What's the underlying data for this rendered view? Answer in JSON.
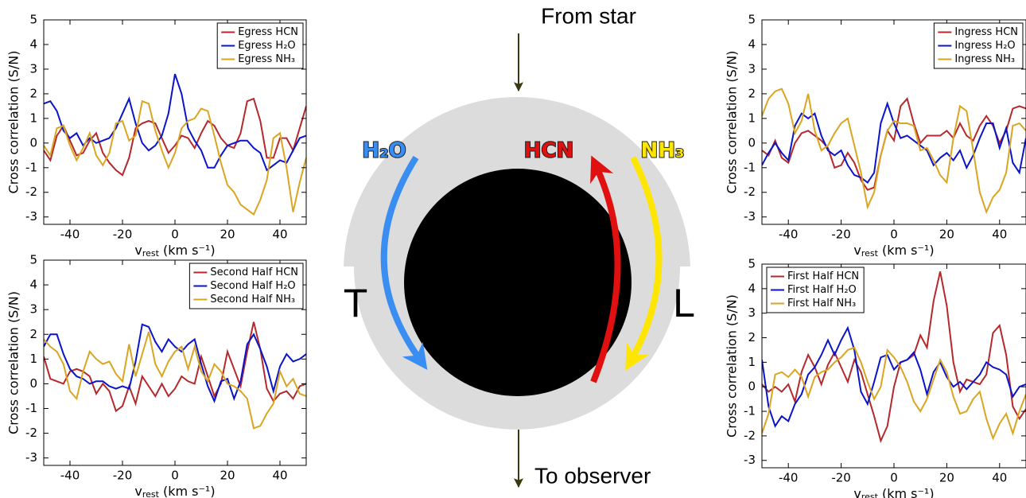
{
  "chart_data": [
    {
      "type": "line",
      "y_label": "Cross correlation (S/N)",
      "x_label": "v",
      "x_label_sub": "rest",
      "x_label_unit": "(km s⁻¹)",
      "x": [
        -50,
        -47.5,
        -45,
        -42.5,
        -40,
        -37.5,
        -35,
        -32.5,
        -30,
        -27.5,
        -25,
        -22.5,
        -20,
        -17.5,
        -15,
        -12.5,
        -10,
        -7.5,
        -5,
        -2.5,
        0,
        2.5,
        5,
        7.5,
        10,
        12.5,
        15,
        17.5,
        20,
        22.5,
        25,
        27.5,
        30,
        32.5,
        35,
        37.5,
        40,
        42.5,
        45,
        47.5,
        50
      ],
      "xlim": [
        -50,
        50
      ],
      "xticks": [
        -40,
        -20,
        0,
        20,
        40
      ],
      "ylim": [
        -3.3,
        5
      ],
      "yticks": [
        -3,
        -2,
        -1,
        0,
        1,
        2,
        3,
        4,
        5
      ],
      "legend": "upper right",
      "series": [
        {
          "name": "Egress HCN",
          "color": "#b5282b",
          "values": [
            -0.3,
            -0.7,
            0.3,
            0.7,
            0.1,
            -0.5,
            -0.4,
            0.1,
            0.4,
            -0.4,
            -0.8,
            -1.1,
            -1.3,
            -0.6,
            0.6,
            0.8,
            0.9,
            0.8,
            0.2,
            -0.4,
            -0.1,
            0.3,
            0.2,
            -0.2,
            0.4,
            0.9,
            0.7,
            0.2,
            -0.1,
            -0.2,
            0.4,
            1.7,
            1.8,
            0.9,
            -0.6,
            -0.6,
            0.2,
            0.2,
            -0.3,
            0.6,
            1.5
          ]
        },
        {
          "name": "Egress H₂O",
          "color": "#0a14c8",
          "values": [
            1.6,
            1.7,
            1.3,
            0.5,
            0.2,
            0.4,
            -0.1,
            0.2,
            0.0,
            0.1,
            0.2,
            0.6,
            1.2,
            1.8,
            0.8,
            0.0,
            -0.3,
            -0.1,
            0.3,
            1.2,
            2.8,
            2.0,
            0.6,
            0.1,
            -0.3,
            -1.0,
            -1.0,
            -0.5,
            -0.1,
            0.0,
            0.1,
            0.1,
            -0.2,
            -0.4,
            -1.1,
            -0.9,
            -0.7,
            -0.8,
            -0.3,
            0.2,
            0.3
          ]
        },
        {
          "name": "Egress NH₃",
          "color": "#daa520",
          "values": [
            -0.1,
            -0.5,
            0.6,
            0.7,
            -0.1,
            -0.7,
            -0.2,
            0.4,
            -0.5,
            -0.9,
            -0.4,
            0.8,
            0.9,
            0.1,
            0.3,
            1.7,
            1.6,
            0.5,
            -0.3,
            -1.0,
            -0.4,
            0.6,
            0.9,
            1.0,
            1.4,
            1.3,
            0.3,
            -0.8,
            -1.7,
            -2.0,
            -2.5,
            -2.7,
            -2.9,
            -2.3,
            -1.5,
            0.2,
            0.4,
            -1.0,
            -2.8,
            -1.6,
            -0.6
          ]
        }
      ]
    },
    {
      "type": "line",
      "y_label": "Cross correlation (S/N)",
      "x_label": "v",
      "x_label_sub": "rest",
      "x_label_unit": "(km s⁻¹)",
      "x": [
        -50,
        -47.5,
        -45,
        -42.5,
        -40,
        -37.5,
        -35,
        -32.5,
        -30,
        -27.5,
        -25,
        -22.5,
        -20,
        -17.5,
        -15,
        -12.5,
        -10,
        -7.5,
        -5,
        -2.5,
        0,
        2.5,
        5,
        7.5,
        10,
        12.5,
        15,
        17.5,
        20,
        22.5,
        25,
        27.5,
        30,
        32.5,
        35,
        37.5,
        40,
        42.5,
        45,
        47.5,
        50
      ],
      "xlim": [
        -50,
        50
      ],
      "xticks": [
        -40,
        -20,
        0,
        20,
        40
      ],
      "ylim": [
        -3.3,
        5
      ],
      "yticks": [
        -3,
        -2,
        -1,
        0,
        1,
        2,
        3,
        4,
        5
      ],
      "legend": "upper right",
      "series": [
        {
          "name": "Second Half HCN",
          "color": "#b5282b",
          "values": [
            1.1,
            0.2,
            0.1,
            0.0,
            0.5,
            0.6,
            0.5,
            0.3,
            -0.4,
            0.0,
            -0.3,
            -1.1,
            -0.9,
            -0.1,
            -0.8,
            0.3,
            -0.1,
            -0.5,
            0.0,
            -0.5,
            -0.2,
            0.3,
            0.1,
            0.0,
            1.1,
            0.3,
            -0.5,
            0.0,
            1.3,
            0.6,
            -0.1,
            1.3,
            2.5,
            1.4,
            -0.2,
            -0.7,
            -0.4,
            -0.3,
            -0.6,
            -0.1,
            0.0
          ]
        },
        {
          "name": "Second Half H₂O",
          "color": "#0a14c8",
          "values": [
            1.5,
            2.0,
            2.0,
            1.2,
            0.6,
            0.3,
            0.2,
            0.0,
            0.1,
            0.1,
            -0.1,
            -0.2,
            -0.1,
            -0.2,
            0.9,
            2.4,
            2.3,
            1.7,
            1.3,
            1.8,
            1.5,
            1.3,
            1.6,
            1.8,
            0.8,
            -0.1,
            -0.7,
            0.1,
            0.2,
            -0.6,
            0.1,
            1.6,
            2.0,
            1.4,
            0.7,
            -0.3,
            0.7,
            1.2,
            0.9,
            1.0,
            1.2
          ]
        },
        {
          "name": "Second Half NH₃",
          "color": "#daa520",
          "values": [
            1.8,
            1.5,
            1.3,
            0.8,
            -0.3,
            -0.6,
            0.5,
            1.3,
            1.0,
            0.8,
            0.9,
            0.4,
            0.1,
            1.6,
            0.3,
            1.2,
            2.1,
            0.8,
            0.3,
            0.9,
            1.3,
            1.5,
            0.6,
            1.5,
            0.5,
            0.1,
            0.8,
            0.5,
            0.0,
            -0.1,
            -0.3,
            -0.6,
            -1.8,
            -1.7,
            -1.2,
            -0.8,
            0.5,
            -0.1,
            0.2,
            -0.4,
            -0.5
          ]
        }
      ]
    },
    {
      "type": "line",
      "y_label": "Cross correlation (S/N)",
      "x_label": "v",
      "x_label_sub": "rest",
      "x_label_unit": "(km s⁻¹)",
      "x": [
        -50,
        -47.5,
        -45,
        -42.5,
        -40,
        -37.5,
        -35,
        -32.5,
        -30,
        -27.5,
        -25,
        -22.5,
        -20,
        -17.5,
        -15,
        -12.5,
        -10,
        -7.5,
        -5,
        -2.5,
        0,
        2.5,
        5,
        7.5,
        10,
        12.5,
        15,
        17.5,
        20,
        22.5,
        25,
        27.5,
        30,
        32.5,
        35,
        37.5,
        40,
        42.5,
        45,
        47.5,
        50
      ],
      "xlim": [
        -50,
        50
      ],
      "xticks": [
        -40,
        -20,
        0,
        20,
        40
      ],
      "ylim": [
        -3.3,
        5
      ],
      "yticks": [
        -3,
        -2,
        -1,
        0,
        1,
        2,
        3,
        4,
        5
      ],
      "legend": "upper right",
      "series": [
        {
          "name": "Ingress HCN",
          "color": "#b5282b",
          "values": [
            -0.3,
            -0.5,
            0.1,
            -0.6,
            -0.8,
            0.0,
            0.4,
            0.5,
            0.3,
            0.1,
            -0.2,
            -1.0,
            -0.9,
            -0.4,
            -0.8,
            -1.5,
            -1.9,
            -1.8,
            -0.5,
            0.5,
            0.1,
            1.5,
            1.8,
            0.8,
            0.0,
            0.3,
            0.3,
            0.3,
            0.5,
            0.2,
            0.8,
            0.3,
            0.1,
            0.7,
            1.1,
            0.7,
            0.0,
            0.5,
            1.4,
            1.5,
            1.4
          ]
        },
        {
          "name": "Ingress H₂O",
          "color": "#0a14c8",
          "values": [
            -0.9,
            -0.4,
            0.0,
            -0.4,
            -0.7,
            0.7,
            1.2,
            1.0,
            1.2,
            0.3,
            -0.3,
            -0.5,
            -0.3,
            -0.9,
            -1.3,
            -1.4,
            -1.6,
            -1.2,
            0.8,
            1.6,
            0.8,
            0.2,
            0.3,
            0.1,
            -0.1,
            -0.3,
            -0.9,
            -0.6,
            -0.4,
            -0.7,
            -0.3,
            -1.0,
            -0.5,
            0.2,
            0.8,
            0.8,
            -0.2,
            0.6,
            -0.8,
            -1.2,
            0.2
          ]
        },
        {
          "name": "Ingress NH₃",
          "color": "#daa520",
          "values": [
            1.1,
            1.8,
            2.1,
            2.2,
            1.6,
            0.4,
            0.9,
            2.0,
            0.5,
            -0.3,
            -0.1,
            0.4,
            0.8,
            1.0,
            -0.1,
            -1.2,
            -2.6,
            -2.0,
            -0.5,
            0.5,
            0.9,
            0.8,
            0.8,
            0.7,
            -0.3,
            -0.2,
            -0.7,
            -1.3,
            -1.6,
            0.2,
            1.5,
            1.3,
            -0.3,
            -2.0,
            -2.8,
            -2.2,
            -1.9,
            -1.2,
            0.7,
            0.8,
            0.5
          ]
        }
      ]
    },
    {
      "type": "line",
      "y_label": "Cross correlation (S/N)",
      "x_label": "v",
      "x_label_sub": "rest",
      "x_label_unit": "(km s⁻¹)",
      "x": [
        -50,
        -47.5,
        -45,
        -42.5,
        -40,
        -37.5,
        -35,
        -32.5,
        -30,
        -27.5,
        -25,
        -22.5,
        -20,
        -17.5,
        -15,
        -12.5,
        -10,
        -7.5,
        -5,
        -2.5,
        0,
        2.5,
        5,
        7.5,
        10,
        12.5,
        15,
        17.5,
        20,
        22.5,
        25,
        27.5,
        30,
        32.5,
        35,
        37.5,
        40,
        42.5,
        45,
        47.5,
        50
      ],
      "xlim": [
        -50,
        50
      ],
      "xticks": [
        -40,
        -20,
        0,
        20,
        40
      ],
      "ylim": [
        -3.3,
        5
      ],
      "yticks": [
        -3,
        -2,
        -1,
        0,
        1,
        2,
        3,
        4,
        5
      ],
      "legend": "upper left",
      "series": [
        {
          "name": "First Half HCN",
          "color": "#b5282b",
          "values": [
            0.1,
            -0.2,
            0.0,
            -0.2,
            0.1,
            -0.6,
            0.6,
            1.3,
            0.8,
            0.1,
            0.9,
            1.4,
            0.8,
            0.2,
            1.1,
            0.6,
            -0.3,
            -1.2,
            -2.2,
            -1.6,
            0.0,
            1.0,
            1.1,
            1.3,
            2.1,
            1.6,
            3.5,
            4.7,
            3.3,
            1.0,
            -0.2,
            0.3,
            0.2,
            0.1,
            0.5,
            2.2,
            2.5,
            1.3,
            -0.8,
            -1.3,
            -0.9
          ]
        },
        {
          "name": "First Half H₂O",
          "color": "#0a14c8",
          "values": [
            1.1,
            -0.8,
            -1.6,
            -1.2,
            -1.4,
            -0.7,
            -0.3,
            0.5,
            0.8,
            1.3,
            1.9,
            1.3,
            1.9,
            2.4,
            1.5,
            -0.2,
            -0.7,
            0.2,
            1.2,
            1.3,
            0.7,
            1.0,
            1.1,
            1.4,
            0.7,
            -0.3,
            0.6,
            1.0,
            0.4,
            0.0,
            0.2,
            -0.1,
            0.2,
            0.5,
            1.0,
            0.8,
            0.7,
            0.5,
            -0.4,
            0.0,
            0.1
          ]
        },
        {
          "name": "First Half NH₃",
          "color": "#daa520",
          "values": [
            -1.9,
            -1.1,
            0.5,
            0.6,
            0.4,
            0.7,
            0.4,
            -0.4,
            0.4,
            0.6,
            0.7,
            1.0,
            1.2,
            1.5,
            1.6,
            1.0,
            0.2,
            -0.5,
            0.0,
            1.5,
            1.2,
            0.8,
            0.2,
            -0.6,
            -1.0,
            -0.5,
            0.3,
            1.1,
            0.6,
            -0.4,
            -1.1,
            -1.0,
            -0.5,
            -0.2,
            -1.3,
            -2.1,
            -1.5,
            -1.1,
            -1.9,
            -1.0,
            -0.3
          ]
        }
      ]
    }
  ],
  "diagram": {
    "top_label": "From star",
    "bottom_label": "To observer",
    "left_label": "T",
    "right_label": "L",
    "arrow_labels": [
      "H₂O",
      "HCN",
      "NH₃"
    ]
  }
}
